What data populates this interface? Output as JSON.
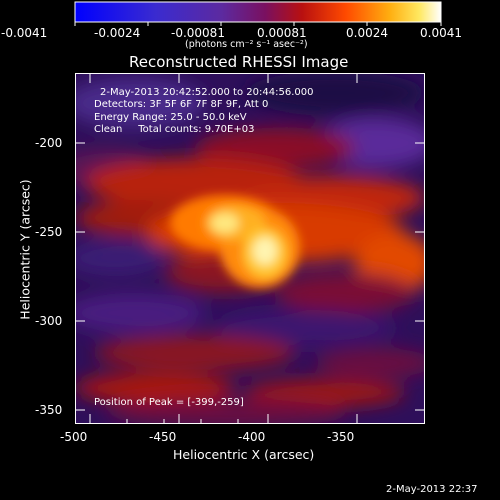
{
  "colorbar": {
    "tick_labels": [
      "-0.0041",
      "-0.0024",
      "-0.00081",
      "0.00081",
      "0.0024",
      "0.0041"
    ],
    "units_label": "(photons cm⁻² s⁻¹ asec⁻²)"
  },
  "title": "Reconstructed RHESSI Image",
  "info": {
    "time_range": "2-May-2013 20:42:52.000 to 20:44:56.000",
    "detectors": "Detectors: 3F 5F 6F 7F 8F 9F, Att 0",
    "energy": "Energy Range: 25.0 - 50.0 keV",
    "clean": "Clean     Total counts: 9.70E+03"
  },
  "peak_label": "Position of Peak = [-399,-259]",
  "x_axis": {
    "label": "Heliocentric X (arcsec)",
    "ticks": [
      "-500",
      "-450",
      "-400",
      "-350"
    ]
  },
  "y_axis": {
    "label": "Heliocentric Y (arcsec)",
    "ticks": [
      "-200",
      "-250",
      "-300",
      "-350"
    ]
  },
  "footer_timestamp": "2-May-2013 22:37",
  "colors": {
    "axis": "#ffffff",
    "background": "#000000"
  }
}
